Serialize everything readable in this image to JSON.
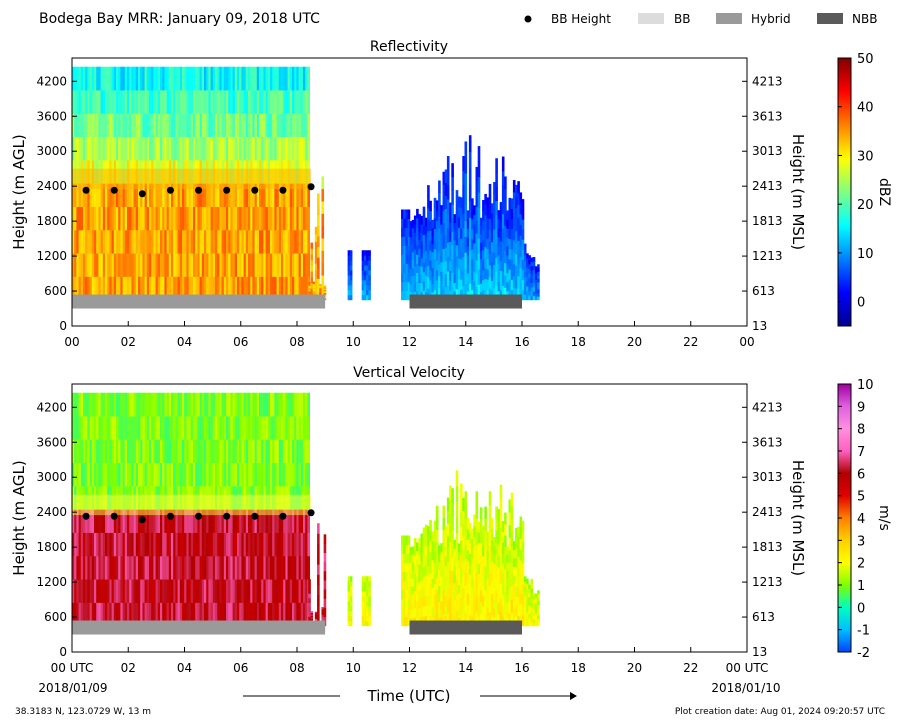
{
  "header": {
    "title": "Bodega Bay MRR:  January 09, 2018 UTC",
    "legend": [
      {
        "label": "BB Height",
        "kind": "dot",
        "color": "#000000"
      },
      {
        "label": "BB",
        "kind": "bar",
        "color": "#dcdcdc"
      },
      {
        "label": "Hybrid",
        "kind": "bar",
        "color": "#9a9a9a"
      },
      {
        "label": "NBB",
        "kind": "bar",
        "color": "#5a5a5a"
      }
    ]
  },
  "footer": {
    "location": "38.3183 N, 123.0729 W, 13 m",
    "creation": "Plot creation date: Aug 01, 2024 09:20:57 UTC",
    "xlabel": "Time (UTC)",
    "start_date": "2018/01/09",
    "end_date": "2018/01/10"
  },
  "chart_data": [
    {
      "type": "heatmap",
      "title": "Reflectivity",
      "ylabel": "Height (m AGL)",
      "ylabel_right": "Height (m MSL)",
      "xlim": [
        0,
        24
      ],
      "ylim": [
        0,
        4600
      ],
      "x_ticks": [
        "00",
        "02",
        "04",
        "06",
        "08",
        "10",
        "12",
        "14",
        "16",
        "18",
        "20",
        "22",
        "00"
      ],
      "y_ticks": [
        0,
        600,
        1200,
        1800,
        2400,
        3000,
        3600,
        4200
      ],
      "y_ticks_right": [
        "13",
        "613",
        "1213",
        "1813",
        "2413",
        "3013",
        "3613",
        "4213"
      ],
      "colorbar": {
        "label": "dBZ",
        "range": [
          -5,
          50
        ],
        "ticks": [
          "0",
          "10",
          "20",
          "30",
          "40",
          "50"
        ],
        "tick_values": [
          0,
          10,
          20,
          30,
          40,
          50
        ],
        "colors": [
          "#00008f",
          "#0000ff",
          "#0080ff",
          "#00ffff",
          "#80ff80",
          "#ffff00",
          "#ff8000",
          "#ff0000",
          "#800000"
        ]
      },
      "bb_height": {
        "x": [
          0.5,
          1.5,
          2.5,
          3.5,
          4.5,
          5.5,
          6.5,
          7.5,
          8.5
        ],
        "y": [
          2330,
          2330,
          2270,
          2330,
          2330,
          2330,
          2330,
          2330,
          2390
        ]
      },
      "bb_type_bars": [
        {
          "type": "Hybrid",
          "start": 0,
          "end": 9
        },
        {
          "type": "NBB",
          "start": 12,
          "end": 16
        }
      ]
    },
    {
      "type": "heatmap",
      "title": "Vertical Velocity",
      "ylabel": "Height (m AGL)",
      "ylabel_right": "Height (m MSL)",
      "xlim": [
        0,
        24
      ],
      "ylim": [
        0,
        4600
      ],
      "x_ticks": [
        "00 UTC",
        "02",
        "04",
        "06",
        "08",
        "10",
        "12",
        "14",
        "16",
        "18",
        "20",
        "22",
        "00 UTC"
      ],
      "y_ticks": [
        0,
        600,
        1200,
        1800,
        2400,
        3000,
        3600,
        4200
      ],
      "y_ticks_right": [
        "13",
        "613",
        "1213",
        "1813",
        "2413",
        "3013",
        "3613",
        "4213"
      ],
      "colorbar": {
        "label": "m/s",
        "range": [
          -2,
          10
        ],
        "ticks": [
          "-2",
          "-1",
          "0",
          "1",
          "2",
          "3",
          "4",
          "5",
          "6",
          "7",
          "8",
          "9",
          "10"
        ],
        "tick_values": [
          -2,
          -1,
          0,
          1,
          2,
          3,
          4,
          5,
          6,
          7,
          8,
          9,
          10
        ],
        "colors": [
          "#0044ff",
          "#00bfff",
          "#00ffc0",
          "#80ff00",
          "#ffff00",
          "#ffd000",
          "#ff8000",
          "#e00000",
          "#b00000",
          "#ff60c0",
          "#ff90e0",
          "#e060e0",
          "#a000a0"
        ]
      },
      "bb_height": {
        "x": [
          0.5,
          1.5,
          2.5,
          3.5,
          4.5,
          5.5,
          6.5,
          7.5,
          8.5
        ],
        "y": [
          2330,
          2330,
          2270,
          2330,
          2330,
          2330,
          2330,
          2330,
          2390
        ]
      },
      "bb_type_bars": [
        {
          "type": "Hybrid",
          "start": 0,
          "end": 9
        },
        {
          "type": "NBB",
          "start": 12,
          "end": 16
        }
      ]
    }
  ]
}
